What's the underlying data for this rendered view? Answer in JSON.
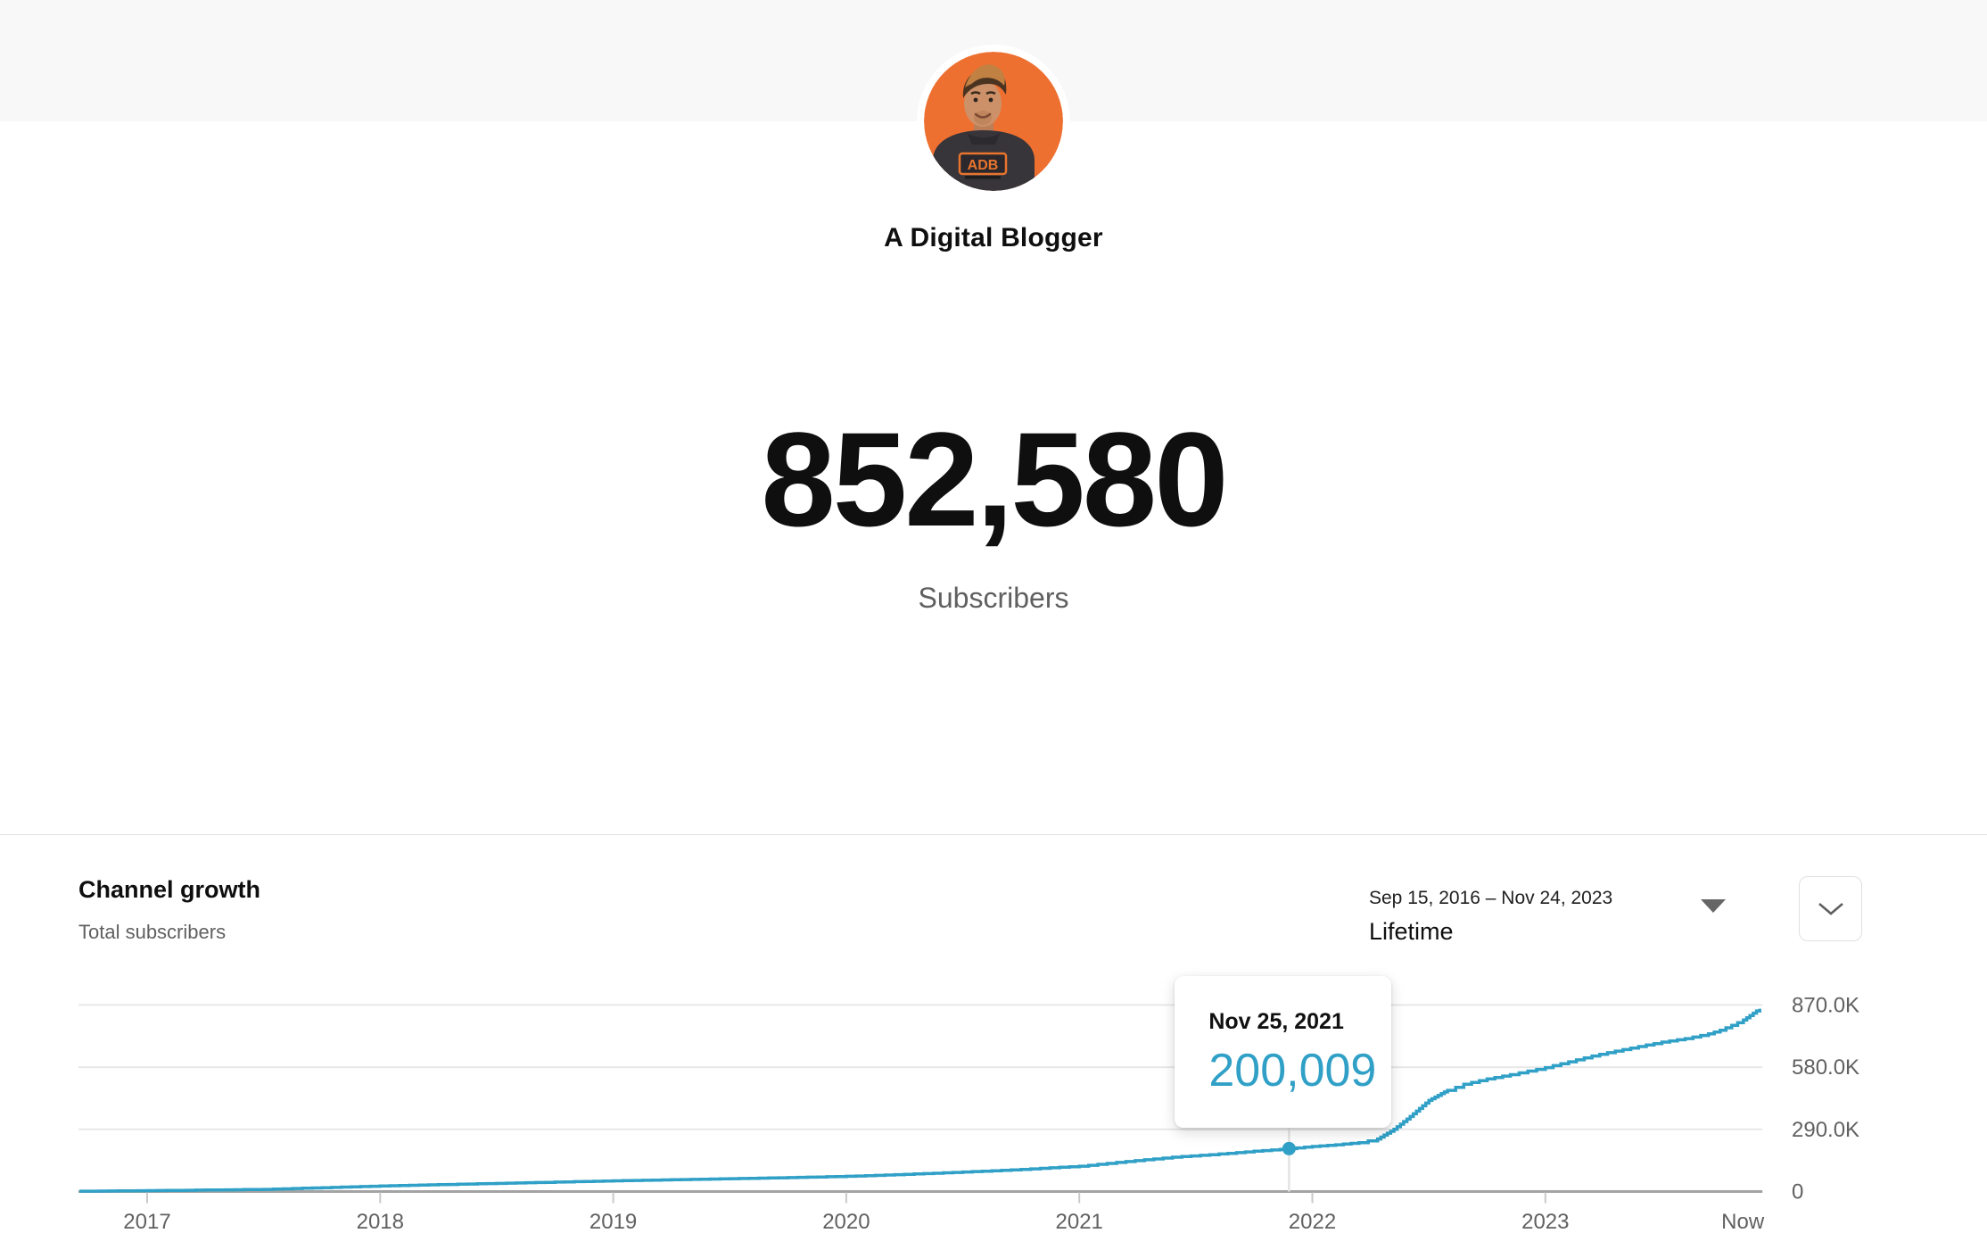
{
  "header": {
    "channel_name": "A Digital Blogger"
  },
  "stats": {
    "subscriber_count": "852,580",
    "subscriber_label": "Subscribers"
  },
  "growth_card": {
    "title": "Channel growth",
    "subtitle": "Total subscribers",
    "date_range": "Sep 15, 2016 – Nov 24, 2023",
    "period": "Lifetime",
    "icons": {
      "period_dropdown": "caret-down",
      "expand": "chevron-down"
    }
  },
  "tooltip": {
    "date": "Nov 25, 2021",
    "value": "200,009"
  },
  "colors": {
    "line": "#30a0c7",
    "avatar_orange": "#ee7031",
    "grid": "#e8e8e8",
    "axis": "#a3a3a3",
    "tick": "#c9c9c9",
    "axis_label": "#616161",
    "hover_line": "#e4e4e4",
    "top_band": "#f8f8f8"
  },
  "chart_data": {
    "type": "line",
    "title": "Channel growth",
    "series_name": "Total subscribers",
    "x_range": {
      "start": 2016.71,
      "end": 2023.92,
      "start_date": "Sep 15, 2016",
      "end_date": "Nov 24, 2023"
    },
    "x_ticks": [
      {
        "label": "2017",
        "x": 2017,
        "tick": true
      },
      {
        "label": "2018",
        "x": 2018,
        "tick": true
      },
      {
        "label": "2019",
        "x": 2019,
        "tick": true
      },
      {
        "label": "2020",
        "x": 2020,
        "tick": true
      },
      {
        "label": "2021",
        "x": 2021,
        "tick": true
      },
      {
        "label": "2022",
        "x": 2022,
        "tick": true
      },
      {
        "label": "2023",
        "x": 2023,
        "tick": true
      },
      {
        "label": "Now",
        "x": 2023.92,
        "tick": false,
        "anchor": "end"
      }
    ],
    "y_ticks": [
      {
        "label": "870.0K",
        "value": 870000
      },
      {
        "label": "580.0K",
        "value": 580000
      },
      {
        "label": "290.0K",
        "value": 290000
      },
      {
        "label": "0",
        "value": 0
      }
    ],
    "ylim": [
      0,
      900000
    ],
    "grid": true,
    "legend": false,
    "line_color": "#30a0c7",
    "points": [
      [
        2016.71,
        1500
      ],
      [
        2017.0,
        4000
      ],
      [
        2017.25,
        7000
      ],
      [
        2017.5,
        10000
      ],
      [
        2017.75,
        18000
      ],
      [
        2018.0,
        26000
      ],
      [
        2018.25,
        32000
      ],
      [
        2018.5,
        38000
      ],
      [
        2018.75,
        44000
      ],
      [
        2019.0,
        50000
      ],
      [
        2019.25,
        55000
      ],
      [
        2019.5,
        60000
      ],
      [
        2019.75,
        65000
      ],
      [
        2020.0,
        71000
      ],
      [
        2020.25,
        80000
      ],
      [
        2020.5,
        91000
      ],
      [
        2020.75,
        103000
      ],
      [
        2021.0,
        118000
      ],
      [
        2021.2,
        140000
      ],
      [
        2021.4,
        160000
      ],
      [
        2021.6,
        175000
      ],
      [
        2021.75,
        188000
      ],
      [
        2021.9,
        200009
      ],
      [
        2022.0,
        210000
      ],
      [
        2022.1,
        218000
      ],
      [
        2022.2,
        228000
      ],
      [
        2022.28,
        245000
      ],
      [
        2022.35,
        290000
      ],
      [
        2022.42,
        350000
      ],
      [
        2022.5,
        425000
      ],
      [
        2022.58,
        472000
      ],
      [
        2022.65,
        500000
      ],
      [
        2022.75,
        525000
      ],
      [
        2022.85,
        545000
      ],
      [
        2023.0,
        578000
      ],
      [
        2023.1,
        605000
      ],
      [
        2023.2,
        632000
      ],
      [
        2023.3,
        655000
      ],
      [
        2023.4,
        676000
      ],
      [
        2023.5,
        697000
      ],
      [
        2023.6,
        713000
      ],
      [
        2023.7,
        735000
      ],
      [
        2023.75,
        752000
      ],
      [
        2023.8,
        775000
      ],
      [
        2023.85,
        800000
      ],
      [
        2023.92,
        852580
      ]
    ],
    "highlight": {
      "x": 2021.9,
      "value": 200009,
      "date_label": "Nov 25, 2021",
      "value_label": "200,009"
    }
  }
}
